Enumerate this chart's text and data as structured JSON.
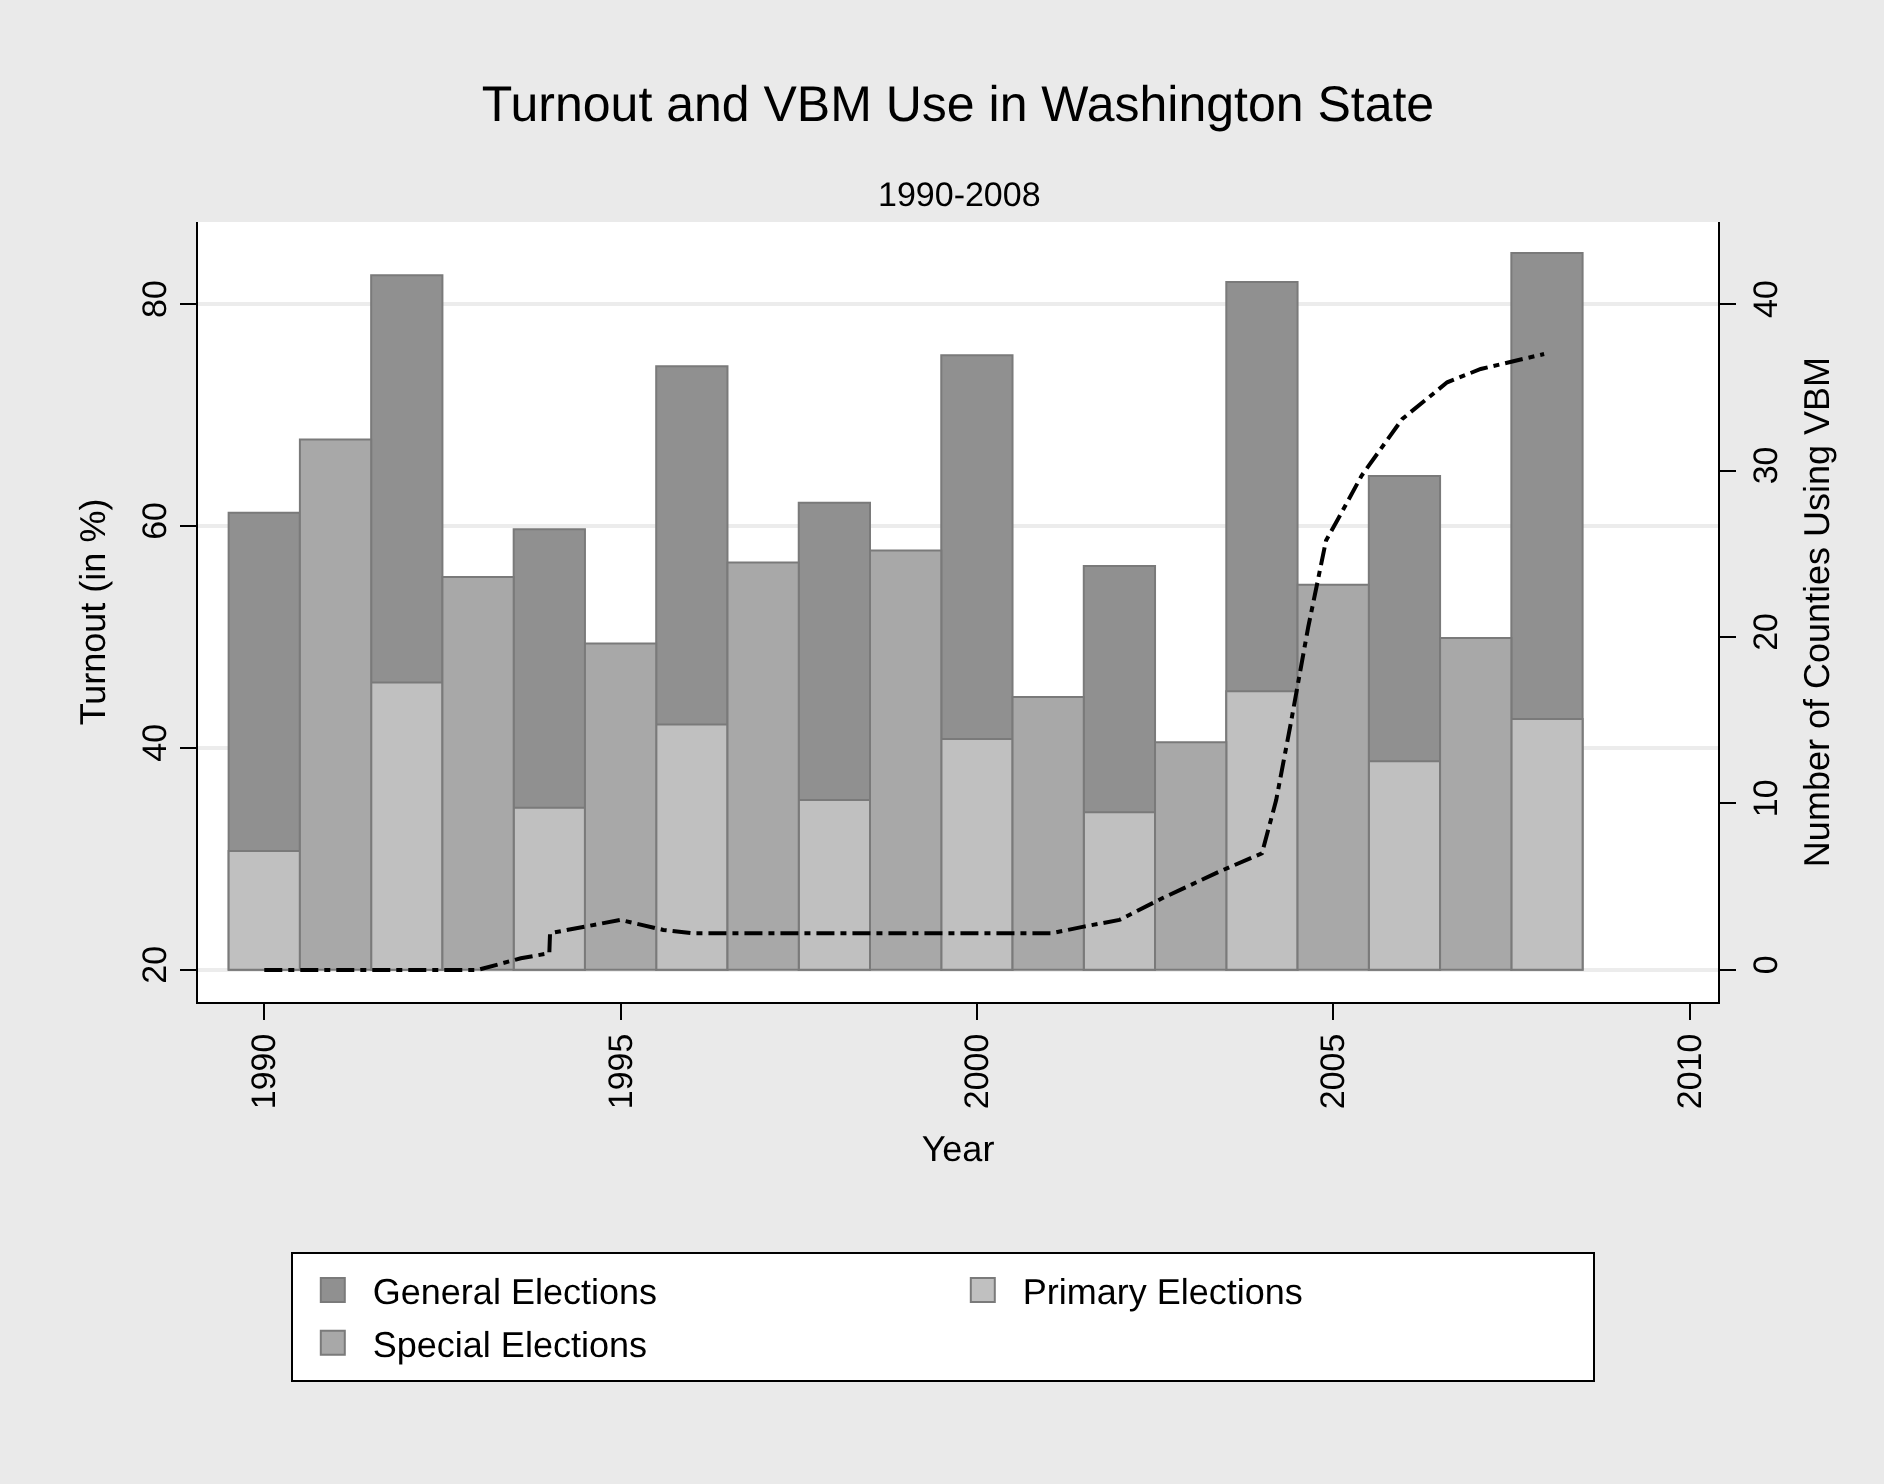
{
  "chart_data": {
    "type": "bar",
    "title": "Turnout and VBM Use in Washington State",
    "subtitle": "1990-2008",
    "xlabel": "Year",
    "ylabel": "Turnout (in %)",
    "y2label": "Number of Counties Using VBM",
    "xlim": [
      1989.07,
      2010.4
    ],
    "xticks": [
      1990,
      1995,
      2000,
      2005,
      2010
    ],
    "ylim": [
      17.1,
      87.4
    ],
    "yticks": [
      20,
      40,
      60,
      80
    ],
    "y2lim": [
      -1.93,
      44.93
    ],
    "y2ticks": [
      0,
      10,
      20,
      30,
      40
    ],
    "grid": "y",
    "legend": "bottom",
    "series": [
      {
        "name": "General Elections",
        "color": "#909090",
        "x": [
          1990,
          1992,
          1994,
          1996,
          1998,
          2000,
          2002,
          2004,
          2006,
          2008
        ],
        "base": [
          20,
          20,
          20,
          20,
          20,
          20,
          20,
          20,
          20,
          20
        ],
        "values": [
          41.2,
          62.6,
          39.7,
          54.4,
          42.1,
          55.4,
          36.4,
          62.0,
          44.5,
          64.6
        ]
      },
      {
        "name": "Primary Elections",
        "color": "#c0c0c0",
        "x": [
          1990,
          1992,
          1994,
          1996,
          1998,
          2000,
          2002,
          2004,
          2006,
          2008
        ],
        "base": [
          20,
          20,
          20,
          20,
          20,
          20,
          20,
          20,
          20,
          20
        ],
        "values": [
          10.7,
          25.9,
          14.6,
          22.1,
          15.3,
          20.8,
          14.2,
          25.1,
          18.8,
          22.6
        ]
      },
      {
        "name": "Special Elections",
        "color": "#a8a8a8",
        "x": [
          1991,
          1993,
          1995,
          1997,
          1999,
          2001,
          2003,
          2005,
          2007
        ],
        "base": [
          20,
          20,
          20,
          20,
          20,
          20,
          20,
          20,
          20
        ],
        "values": [
          47.8,
          35.4,
          29.4,
          36.7,
          37.8,
          24.6,
          20.5,
          34.7,
          29.9
        ]
      },
      {
        "type": "line",
        "axis": "y2",
        "color": "#000000",
        "line_style": "dashdot",
        "marker": "none",
        "x": [
          1990,
          1993,
          1993.6,
          1994,
          1994.01,
          1994.5,
          1995,
          1995.6,
          1996,
          2001.05,
          2001.5,
          2002,
          2002.6,
          2003.4,
          2004,
          2004.2,
          2004.4,
          2004.65,
          2004.9,
          2005.07,
          2005.4,
          2005.97,
          2006.6,
          2007.07,
          2007.96
        ],
        "values": [
          0,
          0,
          0.7,
          1.0,
          2.2,
          2.6,
          3.0,
          2.4,
          2.2,
          2.2,
          2.6,
          3.0,
          4.3,
          5.9,
          7.0,
          10.2,
          14.7,
          20.6,
          25.8,
          27.1,
          29.7,
          33.1,
          35.3,
          36.1,
          37.0
        ]
      }
    ]
  }
}
